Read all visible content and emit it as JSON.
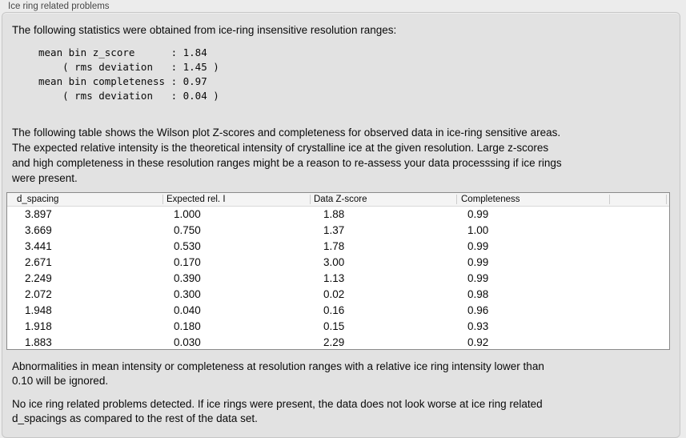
{
  "colors": {
    "page_bg": "#ececec",
    "panel_bg": "#e2e2e2",
    "panel_border": "#c6c6c6",
    "table_bg": "#ffffff",
    "table_border": "#8a8a8a",
    "table_header_bg": "#f4f4f4",
    "text": "#0a0a0a",
    "title_text": "#474747"
  },
  "panel": {
    "title": "Ice ring related problems"
  },
  "intro": {
    "text": "The following statistics were obtained from ice-ring insensitive resolution ranges:"
  },
  "stats": {
    "lines": [
      "mean bin z_score      : 1.84",
      "    ( rms deviation   : 1.45 )",
      "mean bin completeness : 0.97",
      "    ( rms deviation   : 0.04 )"
    ]
  },
  "description": {
    "lines": [
      "The following table shows the Wilson plot Z-scores and completeness for observed data in ice-ring sensitive areas.",
      "The expected relative intensity is the theoretical intensity of crystalline ice at the given resolution. Large z-scores",
      "and high completeness in these resolution ranges might be a reason to re-assess your data processsing if ice rings",
      "were present."
    ]
  },
  "table": {
    "columns": [
      "d_spacing",
      "Expected rel. I",
      "Data Z-score",
      "Completeness"
    ],
    "rows": [
      [
        "3.897",
        "1.000",
        "1.88",
        "0.99"
      ],
      [
        "3.669",
        "0.750",
        "1.37",
        "1.00"
      ],
      [
        "3.441",
        "0.530",
        "1.78",
        "0.99"
      ],
      [
        "2.671",
        "0.170",
        "3.00",
        "0.99"
      ],
      [
        "2.249",
        "0.390",
        "1.13",
        "0.99"
      ],
      [
        "2.072",
        "0.300",
        "0.02",
        "0.98"
      ],
      [
        "1.948",
        "0.040",
        "0.16",
        "0.96"
      ],
      [
        "1.918",
        "0.180",
        "0.15",
        "0.93"
      ],
      [
        "1.883",
        "0.030",
        "2.29",
        "0.92"
      ]
    ]
  },
  "notes": {
    "ignore_lines": [
      "Abnormalities in mean intensity or completeness at resolution ranges with a relative ice ring intensity lower than",
      "0.10 will be ignored."
    ],
    "conclusion_lines": [
      "No ice ring related problems detected. If ice rings were present, the data does not look worse at ice ring related",
      "d_spacings as compared to the rest of the data set."
    ]
  }
}
